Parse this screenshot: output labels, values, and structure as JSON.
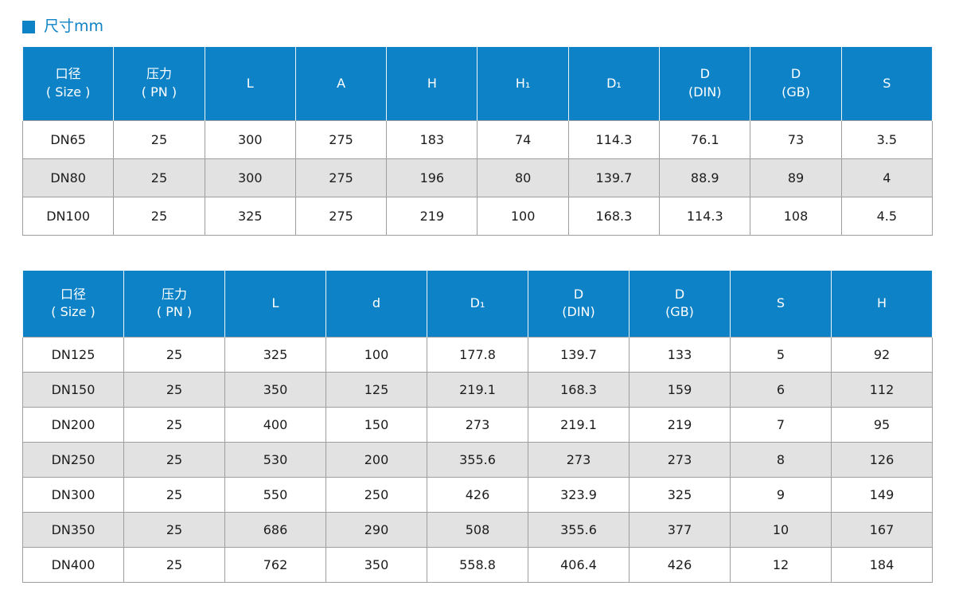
{
  "page": {
    "title": "尺寸mm"
  },
  "colors": {
    "accent": "#0d82c6",
    "header_text": "#ffffff",
    "row_alt_bg": "#e2e2e2",
    "border": "#9e9e9e"
  },
  "tables": [
    {
      "name": "dimensions-table-top",
      "headers": [
        "口径\n( Size )",
        "压力\n( PN )",
        "L",
        "A",
        "H",
        "H₁",
        "D₁",
        "D\n(DIN)",
        "D\n(GB)",
        "S"
      ],
      "rows": [
        [
          "DN65",
          "25",
          "300",
          "275",
          "183",
          "74",
          "114.3",
          "76.1",
          "73",
          "3.5"
        ],
        [
          "DN80",
          "25",
          "300",
          "275",
          "196",
          "80",
          "139.7",
          "88.9",
          "89",
          "4"
        ],
        [
          "DN100",
          "25",
          "325",
          "275",
          "219",
          "100",
          "168.3",
          "114.3",
          "108",
          "4.5"
        ]
      ]
    },
    {
      "name": "dimensions-table-bottom",
      "headers": [
        "口径\n( Size )",
        "压力\n( PN )",
        "L",
        "d",
        "D₁",
        "D\n(DIN)",
        "D\n(GB)",
        "S",
        "H"
      ],
      "rows": [
        [
          "DN125",
          "25",
          "325",
          "100",
          "177.8",
          "139.7",
          "133",
          "5",
          "92"
        ],
        [
          "DN150",
          "25",
          "350",
          "125",
          "219.1",
          "168.3",
          "159",
          "6",
          "112"
        ],
        [
          "DN200",
          "25",
          "400",
          "150",
          "273",
          "219.1",
          "219",
          "7",
          "95"
        ],
        [
          "DN250",
          "25",
          "530",
          "200",
          "355.6",
          "273",
          "273",
          "8",
          "126"
        ],
        [
          "DN300",
          "25",
          "550",
          "250",
          "426",
          "323.9",
          "325",
          "9",
          "149"
        ],
        [
          "DN350",
          "25",
          "686",
          "290",
          "508",
          "355.6",
          "377",
          "10",
          "167"
        ],
        [
          "DN400",
          "25",
          "762",
          "350",
          "558.8",
          "406.4",
          "426",
          "12",
          "184"
        ]
      ]
    }
  ]
}
